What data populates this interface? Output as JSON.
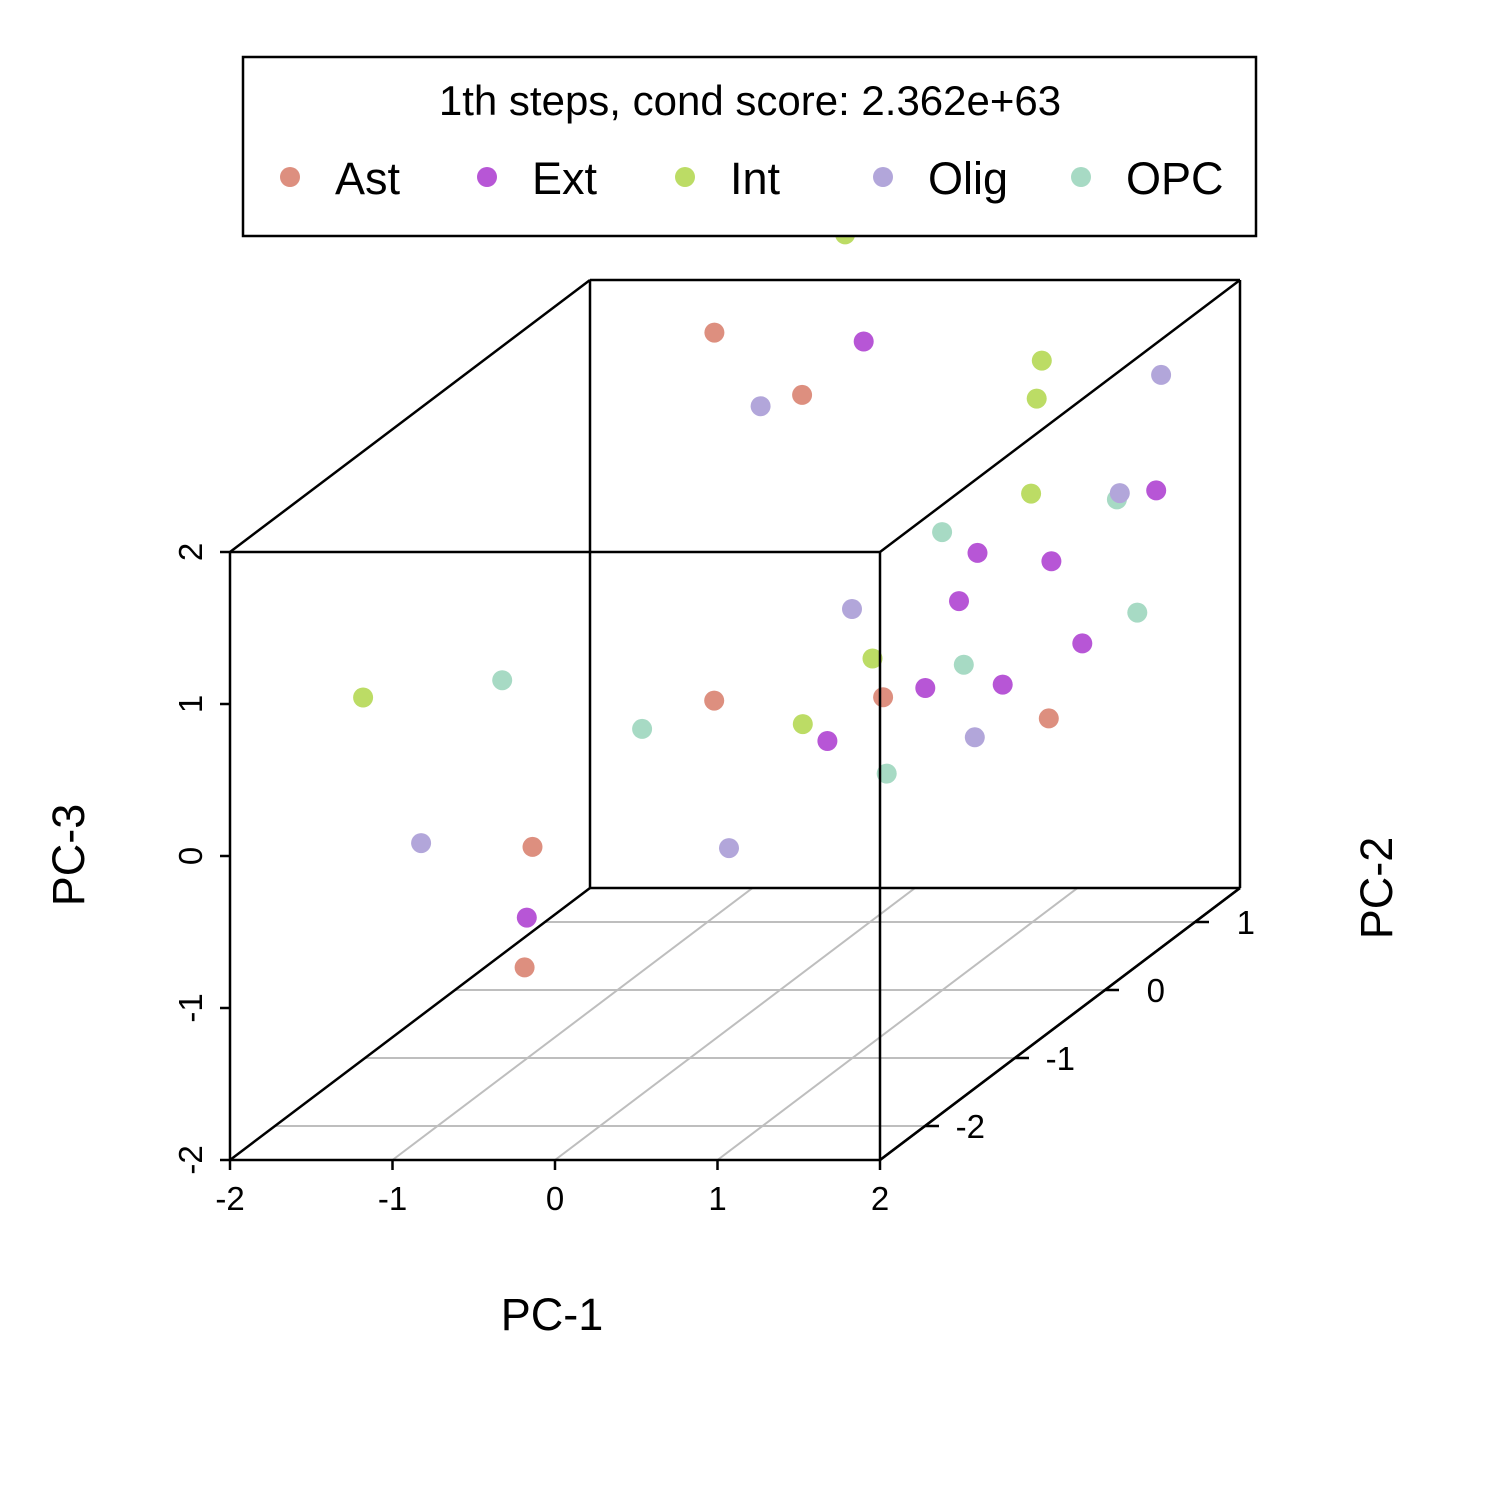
{
  "chart_data": {
    "type": "scatter",
    "title": "1th steps, cond score: 2.362e+63",
    "xlabel": "PC-1",
    "ylabel": "PC-2",
    "zlabel": "PC-3",
    "xlim": [
      -2,
      2
    ],
    "ylim": [
      -2.5,
      1.5
    ],
    "zlim": [
      -2,
      2
    ],
    "xticks": [
      "-2",
      "-1",
      "0",
      "1",
      "2"
    ],
    "yticks": [
      "-2",
      "-1",
      "0",
      "1"
    ],
    "zticks": [
      "-2",
      "-1",
      "0",
      "1",
      "2"
    ],
    "legend_position": "top",
    "series": [
      {
        "name": "Ast",
        "color": "#dd8f7f",
        "points": [
          [
            -0.93,
            0.95,
            1.9
          ],
          [
            -0.39,
            0.95,
            1.49
          ],
          [
            -0.72,
            -1.45,
            -0.41
          ],
          [
            -0.15,
            -0.46,
            0.11
          ],
          [
            0.23,
            0.73,
            -0.4
          ],
          [
            -0.27,
            -2.35,
            -0.8
          ],
          [
            1.25,
            0.73,
            -0.54
          ]
        ]
      },
      {
        "name": "Ext",
        "color": "#b756d6",
        "points": [
          [
            -0.31,
            1.49,
            1.6
          ],
          [
            1.49,
            1.49,
            0.62
          ],
          [
            1.41,
            0.47,
            0.61
          ],
          [
            1.6,
            0.47,
            0.07
          ],
          [
            0.17,
            0.22,
            -0.46
          ],
          [
            1.52,
            -0.27,
            0.13
          ],
          [
            0.98,
            0.22,
            0.46
          ],
          [
            -0.6,
            -1.73,
            -0.75
          ],
          [
            0.54,
            1.22,
            0.33
          ],
          [
            0.49,
            0.73,
            -0.34
          ]
        ]
      },
      {
        "name": "Int",
        "color": "#bcdc65",
        "points": [
          [
            -1.89,
            -1.22,
            0.47
          ],
          [
            -0.43,
            1.5,
            2.3
          ],
          [
            0.78,
            1.5,
            1.47
          ],
          [
            1.17,
            0.74,
            1.56
          ],
          [
            1.13,
            0.75,
            0.93
          ],
          [
            0.58,
            -0.02,
            0.19
          ],
          [
            0.5,
            -0.65,
            0.04
          ]
        ]
      },
      {
        "name": "Olig",
        "color": "#b2a6da",
        "points": [
          [
            -0.69,
            1.03,
            1.38
          ],
          [
            1.52,
            1.49,
            1.38
          ],
          [
            -1.09,
            -2.02,
            -0.13
          ],
          [
            0.62,
            -0.32,
            0.65
          ],
          [
            0.7,
            0.9,
            -0.74
          ],
          [
            1.82,
            0.49,
            1.05
          ],
          [
            -0.12,
            -0.35,
            -0.91
          ]
        ]
      },
      {
        "name": "OPC",
        "color": "#a7dac4",
        "points": [
          [
            -1.15,
            -1.01,
            0.49
          ],
          [
            -0.45,
            -0.72,
            0.04
          ],
          [
            0.97,
            0.05,
            0.99
          ],
          [
            1.63,
            0.8,
            0.87
          ],
          [
            0.64,
            0.03,
            -0.59
          ],
          [
            1.7,
            0.9,
            0.08
          ],
          [
            0.66,
            0.85,
            -0.24
          ]
        ]
      }
    ]
  }
}
